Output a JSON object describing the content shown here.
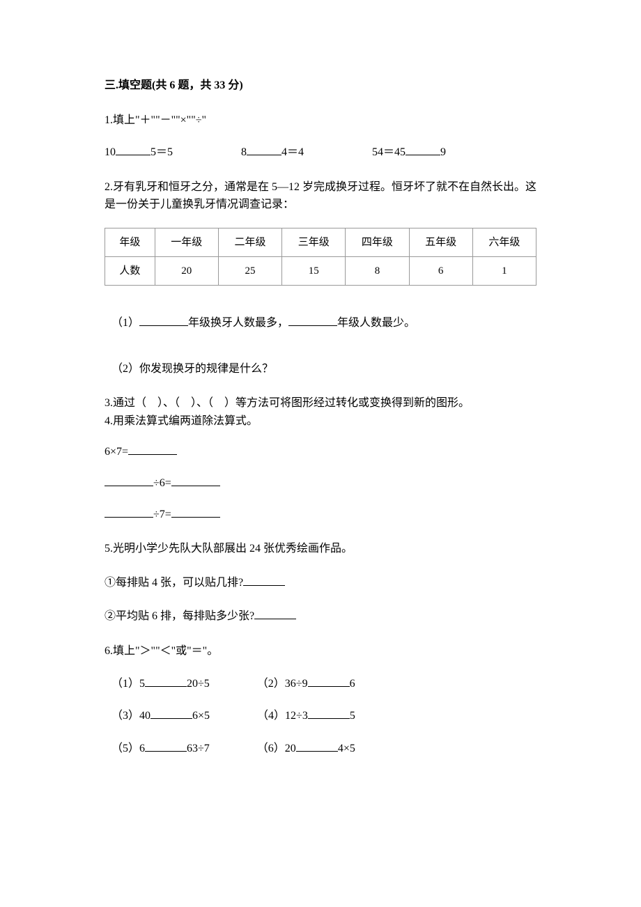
{
  "section": {
    "title": "三.填空题(共 6 题，共 33 分)"
  },
  "q1": {
    "prompt": "1.填上\"＋\"\"－\"\"×\"\"÷\"",
    "items": {
      "a_left": "10",
      "a_right": "5＝5",
      "b_left": "8",
      "b_right": "4＝4",
      "c_left": "54＝45",
      "c_right": "9"
    }
  },
  "q2": {
    "prompt": "2.牙有乳牙和恒牙之分，通常是在 5—12 岁完成换牙过程。恒牙坏了就不在自然长出。这是一份关于儿童换乳牙情况调查记录：",
    "table": {
      "headers": [
        "年级",
        "一年级",
        "二年级",
        "三年级",
        "四年级",
        "五年级",
        "六年级"
      ],
      "row_label": "人数",
      "values": [
        "20",
        "25",
        "15",
        "8",
        "6",
        "1"
      ]
    },
    "sub1_a": "（1）",
    "sub1_b": "年级换牙人数最多，",
    "sub1_c": "年级人数最少。",
    "sub2": "（2）你发现换牙的规律是什么？"
  },
  "q3": {
    "a": "3.通过（",
    "b": "）、（",
    "c": "）、（",
    "d": "）等方法可将图形经过转化或变换得到新的图形。"
  },
  "q4": {
    "prompt": "4.用乘法算式编两道除法算式。",
    "line1": "6×7=",
    "line2_mid": "÷6=",
    "line3_mid": "÷7="
  },
  "q5": {
    "prompt": "5.光明小学少先队大队部展出 24 张优秀绘画作品。",
    "sub1": "①每排贴 4 张，可以贴几排?",
    "sub2": "②平均贴 6 排，每排贴多少张?"
  },
  "q6": {
    "prompt": "6.填上\"＞\"\"＜\"或\"＝\"。",
    "items": {
      "r1a_l": "（1）5",
      "r1a_r": "20÷5",
      "r1b_l": "（2）36÷9",
      "r1b_r": "6",
      "r2a_l": "（3）40",
      "r2a_r": "6×5",
      "r2b_l": "（4）12÷3",
      "r2b_r": "5",
      "r3a_l": "（5）6",
      "r3a_r": "63÷7",
      "r3b_l": "（6）20",
      "r3b_r": "4×5"
    }
  }
}
